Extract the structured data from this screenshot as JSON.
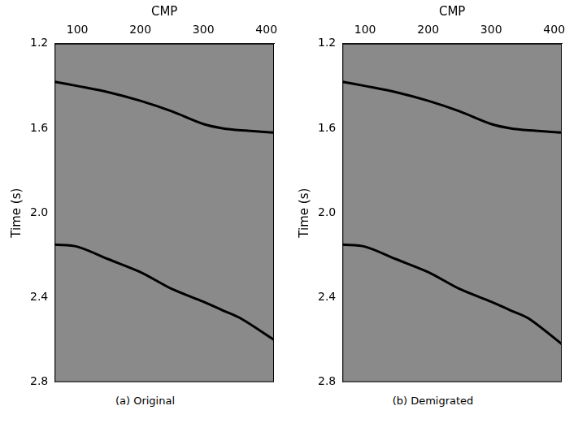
{
  "chart_data": [
    {
      "type": "line",
      "title": "(a) Original",
      "x_label": "CMP",
      "y_label": "Time (s)",
      "x": [
        64,
        100,
        150,
        200,
        250,
        300,
        330,
        360,
        412
      ],
      "series": [
        {
          "color": "#000000",
          "line_style": "solid",
          "values": [
            1.38,
            1.4,
            1.43,
            1.47,
            1.52,
            1.58,
            1.6,
            1.61,
            1.62
          ]
        },
        {
          "color": "#000000",
          "line_style": "solid",
          "values": [
            2.15,
            2.16,
            2.22,
            2.28,
            2.36,
            2.42,
            2.46,
            2.5,
            2.6
          ]
        }
      ],
      "xlim": [
        64,
        412
      ],
      "xticks": [
        100,
        200,
        300,
        400
      ],
      "ylim": [
        2.8,
        1.2
      ],
      "yticks": [
        1.2,
        1.6,
        {
          "value": 2,
          "label": "2.0"
        },
        2.4,
        2.8
      ],
      "grid": false
    },
    {
      "type": "line",
      "title": "(b) Demigrated",
      "x_label": "CMP",
      "y_label": "Time (s)",
      "x": [
        64,
        100,
        150,
        200,
        250,
        300,
        330,
        360,
        412
      ],
      "series": [
        {
          "color": "#000000",
          "line_style": "solid",
          "values": [
            1.38,
            1.4,
            1.43,
            1.47,
            1.52,
            1.58,
            1.6,
            1.61,
            1.62
          ]
        },
        {
          "color": "#000000",
          "line_style": "solid",
          "values": [
            2.15,
            2.16,
            2.22,
            2.28,
            2.36,
            2.42,
            2.46,
            2.5,
            2.62
          ]
        }
      ],
      "xlim": [
        64,
        412
      ],
      "xticks": [
        100,
        200,
        300,
        400
      ],
      "ylim": [
        2.8,
        1.2
      ],
      "yticks": [
        1.2,
        1.6,
        {
          "value": 2,
          "label": "2.0"
        },
        2.4,
        2.8
      ],
      "grid": false
    }
  ]
}
